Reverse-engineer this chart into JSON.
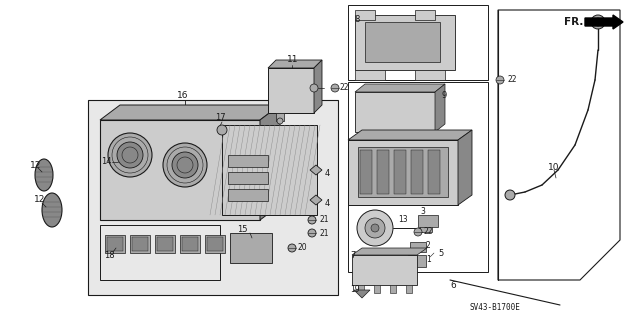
{
  "bg": "#ffffff",
  "lc": "#1a1a1a",
  "fig_w": 6.4,
  "fig_h": 3.19,
  "dpi": 100,
  "diagram_code": "SV43-B1700E",
  "gray1": "#cccccc",
  "gray2": "#aaaaaa",
  "gray3": "#888888",
  "gray4": "#e8e8e8",
  "gray5": "#555555"
}
